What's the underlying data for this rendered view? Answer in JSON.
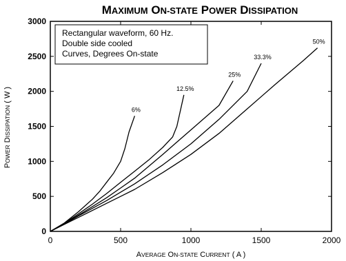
{
  "chart_data": {
    "type": "line",
    "title": "Maximum On-state Power Dissipation",
    "xlabel": "Average On-State Current ( A )",
    "ylabel": "Power Dissipation ( W )",
    "xlim": [
      0,
      2000
    ],
    "ylim": [
      0,
      3000
    ],
    "x_ticks": [
      "0",
      "500",
      "1000",
      "1500",
      "2000"
    ],
    "y_ticks": [
      "0",
      "500",
      "1000",
      "1500",
      "2000",
      "2500",
      "3000"
    ],
    "grid": false,
    "annotation_lines": [
      "Rectangular waveform, 60 Hz.",
      "Double side cooled",
      "Curves, Degrees On-state"
    ],
    "series": [
      {
        "name": "6%",
        "x": [
          0,
          100,
          200,
          300,
          350,
          400,
          450,
          500,
          530,
          560,
          600
        ],
        "y": [
          0,
          120,
          280,
          460,
          570,
          700,
          830,
          1000,
          1180,
          1420,
          1650
        ]
      },
      {
        "name": "12.5%",
        "x": [
          0,
          100,
          200,
          300,
          400,
          500,
          600,
          700,
          800,
          870,
          900,
          950
        ],
        "y": [
          0,
          115,
          250,
          390,
          540,
          700,
          860,
          1020,
          1200,
          1350,
          1500,
          1950
        ]
      },
      {
        "name": "25%",
        "x": [
          0,
          100,
          200,
          400,
          500,
          600,
          800,
          1000,
          1200,
          1300
        ],
        "y": [
          0,
          110,
          230,
          480,
          620,
          760,
          1100,
          1450,
          1800,
          2150
        ]
      },
      {
        "name": "33.3%",
        "x": [
          0,
          100,
          200,
          400,
          500,
          600,
          800,
          1000,
          1200,
          1400,
          1500
        ],
        "y": [
          0,
          105,
          220,
          440,
          560,
          680,
          950,
          1250,
          1600,
          2000,
          2400
        ]
      },
      {
        "name": "50%",
        "x": [
          0,
          100,
          200,
          400,
          500,
          600,
          800,
          1000,
          1200,
          1400,
          1600,
          1800,
          1900
        ],
        "y": [
          0,
          100,
          200,
          400,
          500,
          600,
          840,
          1100,
          1400,
          1750,
          2100,
          2440,
          2620
        ]
      }
    ]
  }
}
